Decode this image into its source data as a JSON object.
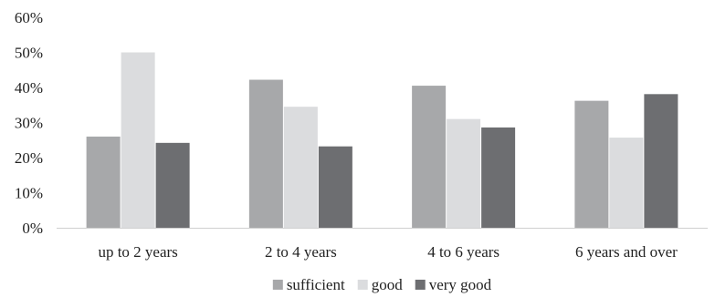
{
  "chart_data": {
    "type": "bar",
    "categories": [
      "up to 2 years",
      "2 to 4 years",
      "4 to 6 years",
      "6 years and over"
    ],
    "series": [
      {
        "name": "sufficient",
        "values": [
          26,
          42.2,
          40.5,
          36.2
        ],
        "color": "#a7a8aa"
      },
      {
        "name": "good",
        "values": [
          50,
          34.5,
          31,
          25.7
        ],
        "color": "#dbdcde"
      },
      {
        "name": "very good",
        "values": [
          24.2,
          23.2,
          28.6,
          38.1
        ],
        "color": "#6d6e71"
      }
    ],
    "ylim": [
      0,
      60
    ],
    "yticks": [
      0,
      10,
      20,
      30,
      40,
      50,
      60
    ],
    "ytick_labels": [
      "0%",
      "10%",
      "20%",
      "30%",
      "40%",
      "50%",
      "60%"
    ],
    "grid": false,
    "legend_position": "bottom"
  }
}
